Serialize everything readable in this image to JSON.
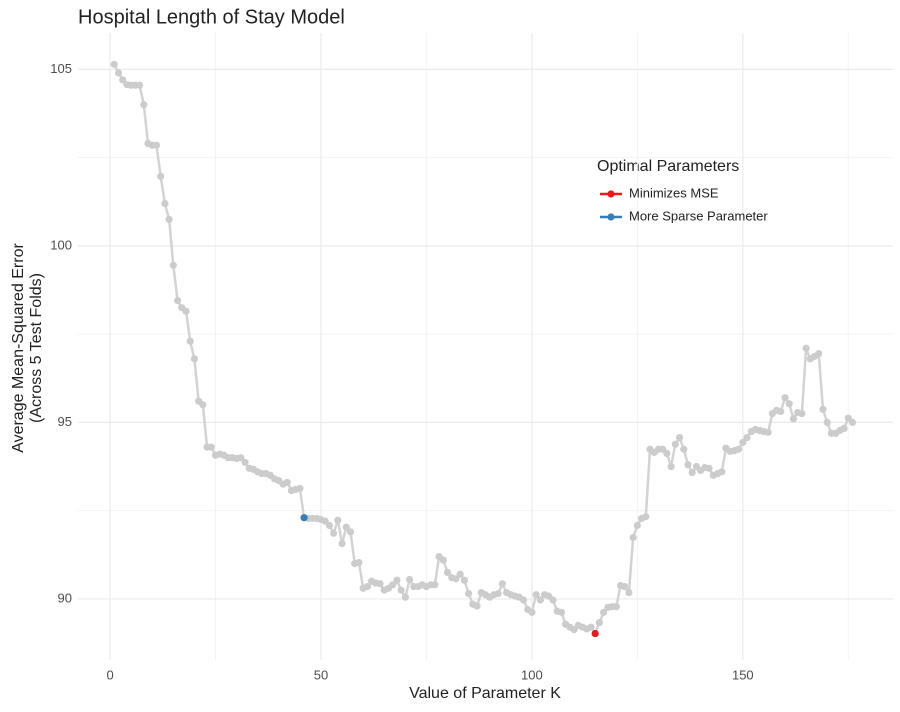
{
  "chart_data": {
    "type": "line",
    "title": "Hospital Length of Stay Model",
    "x_label": "Value of Parameter K",
    "y_label": [
      "Average Mean-Squared Error",
      "(Across 5 Test Folds)"
    ],
    "legend_title": "Optimal Parameters",
    "xlim": [
      -7.6,
      185.6
    ],
    "ylim": [
      88.27,
      106.03
    ],
    "xticks": [
      0,
      50,
      100,
      150
    ],
    "yticks": [
      90,
      95,
      100,
      105
    ],
    "xminor": [
      25,
      75,
      125,
      175
    ],
    "yminor": [
      92.5,
      97.5,
      102.5
    ],
    "grid": true,
    "x": [
      1,
      2,
      3,
      4,
      5,
      6,
      7,
      8,
      9,
      10,
      11,
      12,
      13,
      14,
      15,
      16,
      17,
      18,
      19,
      20,
      21,
      22,
      23,
      24,
      25,
      26,
      27,
      28,
      29,
      30,
      31,
      32,
      33,
      34,
      35,
      36,
      37,
      38,
      39,
      40,
      41,
      42,
      43,
      44,
      45,
      46,
      47,
      48,
      49,
      50,
      51,
      52,
      53,
      54,
      55,
      56,
      57,
      58,
      59,
      60,
      61,
      62,
      63,
      64,
      65,
      66,
      67,
      68,
      69,
      70,
      71,
      72,
      73,
      74,
      75,
      76,
      77,
      78,
      79,
      80,
      81,
      82,
      83,
      84,
      85,
      86,
      87,
      88,
      89,
      90,
      91,
      92,
      93,
      94,
      95,
      96,
      97,
      98,
      99,
      100,
      101,
      102,
      103,
      104,
      105,
      106,
      107,
      108,
      109,
      110,
      111,
      112,
      113,
      114,
      115,
      116,
      117,
      118,
      119,
      120,
      121,
      122,
      123,
      124,
      125,
      126,
      127,
      128,
      129,
      130,
      131,
      132,
      133,
      134,
      135,
      136,
      137,
      138,
      139,
      140,
      141,
      142,
      143,
      144,
      145,
      146,
      147,
      148,
      149,
      150,
      151,
      152,
      153,
      154,
      155,
      156,
      157,
      158,
      159,
      160,
      161,
      162,
      163,
      164,
      165,
      166,
      167,
      168,
      169,
      170,
      171,
      172,
      173,
      174,
      175,
      176
    ],
    "series": [
      {
        "color": "#cccccc",
        "values": [
          105.14,
          104.9,
          104.7,
          104.57,
          104.55,
          104.55,
          104.55,
          104.0,
          102.9,
          102.85,
          102.85,
          101.97,
          101.2,
          100.75,
          99.45,
          98.45,
          98.25,
          98.15,
          97.3,
          96.8,
          95.6,
          95.5,
          94.3,
          94.3,
          94.07,
          94.1,
          94.07,
          94.0,
          94.0,
          93.98,
          94.0,
          93.87,
          93.7,
          93.67,
          93.6,
          93.55,
          93.55,
          93.5,
          93.4,
          93.35,
          93.25,
          93.3,
          93.07,
          93.1,
          93.13,
          92.3,
          92.28,
          92.28,
          92.28,
          92.25,
          92.2,
          92.08,
          91.86,
          92.23,
          91.57,
          92.03,
          91.9,
          91.0,
          91.03,
          90.3,
          90.35,
          90.5,
          90.45,
          90.43,
          90.25,
          90.3,
          90.4,
          90.53,
          90.25,
          90.05,
          90.55,
          90.35,
          90.35,
          90.4,
          90.35,
          90.4,
          90.4,
          91.2,
          91.1,
          90.75,
          90.6,
          90.57,
          90.7,
          90.53,
          90.15,
          89.85,
          89.8,
          90.18,
          90.12,
          90.05,
          90.12,
          90.15,
          90.43,
          90.18,
          90.12,
          90.08,
          90.05,
          89.97,
          89.7,
          89.62,
          90.12,
          89.97,
          90.12,
          90.08,
          89.97,
          89.65,
          89.62,
          89.28,
          89.2,
          89.13,
          89.25,
          89.2,
          89.15,
          89.2,
          89.02,
          89.33,
          89.62,
          89.76,
          89.78,
          89.78,
          90.38,
          90.35,
          90.18,
          91.74,
          92.08,
          92.28,
          92.33,
          94.24,
          94.15,
          94.24,
          94.24,
          94.12,
          93.75,
          94.38,
          94.57,
          94.24,
          93.8,
          93.58,
          93.75,
          93.64,
          93.72,
          93.7,
          93.5,
          93.55,
          93.6,
          94.27,
          94.18,
          94.2,
          94.24,
          94.43,
          94.57,
          94.74,
          94.8,
          94.77,
          94.74,
          94.72,
          95.25,
          95.34,
          95.31,
          95.7,
          95.53,
          95.1,
          95.28,
          95.25,
          97.1,
          96.8,
          96.87,
          96.95,
          95.37,
          95.0,
          94.69,
          94.69,
          94.77,
          94.83,
          95.12,
          95.0
        ]
      },
      {
        "name": "Minimizes MSE",
        "color": "#e41a1c",
        "x": [
          115
        ],
        "values": [
          89.02
        ]
      },
      {
        "name": "More Sparse Parameter",
        "color": "#377eb8",
        "x": [
          46
        ],
        "values": [
          92.3
        ]
      }
    ]
  }
}
